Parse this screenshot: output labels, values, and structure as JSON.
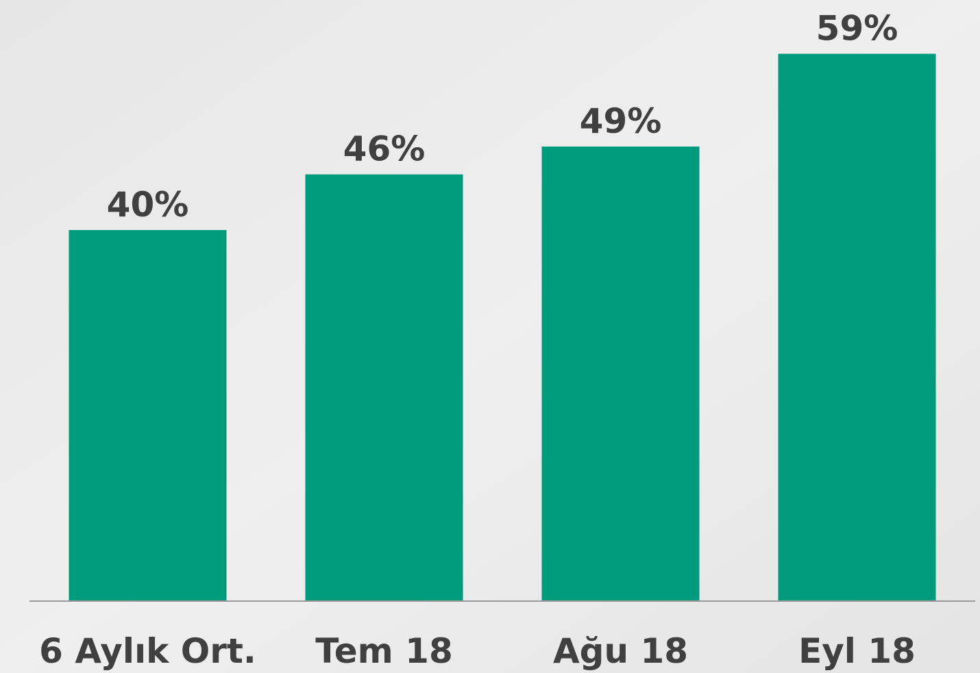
{
  "chart_data": {
    "type": "bar",
    "categories": [
      "6 Aylık Ort.",
      "Tem 18",
      "Ağu 18",
      "Eyl 18"
    ],
    "values": [
      40,
      46,
      49,
      59
    ],
    "value_labels": [
      "40%",
      "46%",
      "49%",
      "59%"
    ],
    "color": "#009b7d",
    "ylim": [
      0,
      60
    ]
  }
}
